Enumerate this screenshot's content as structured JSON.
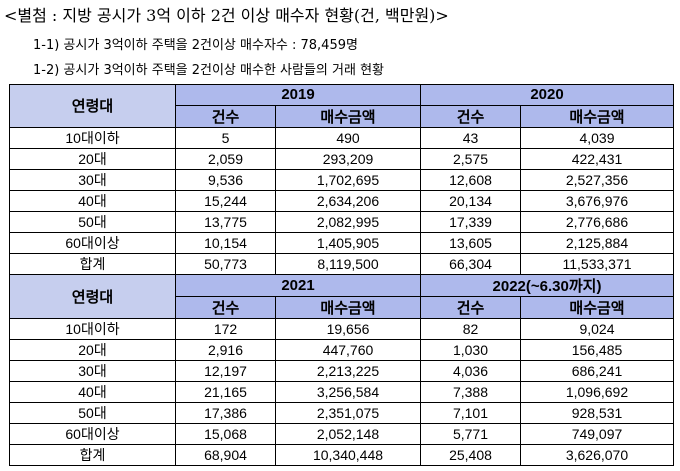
{
  "title": "<별첨 : 지방 공시가 3억 이하 2건 이상 매수자 현황(건, 백만원)>",
  "note1": "1-1) 공시가 3억이하 주택을 2건이상 매수자수 : 78,459명",
  "note2": "1-2) 공시가 3억이하 주택을 2건이상 매수한 사람들의 거래 현황",
  "col_age": "연령대",
  "col_count": "건수",
  "col_amount": "매수금액",
  "block1": {
    "year_a": "2019",
    "year_b": "2020",
    "rows": [
      {
        "age": "10대이하",
        "a_count": "5",
        "a_amount": "490",
        "b_count": "43",
        "b_amount": "4,039"
      },
      {
        "age": "20대",
        "a_count": "2,059",
        "a_amount": "293,209",
        "b_count": "2,575",
        "b_amount": "422,431"
      },
      {
        "age": "30대",
        "a_count": "9,536",
        "a_amount": "1,702,695",
        "b_count": "12,608",
        "b_amount": "2,527,356"
      },
      {
        "age": "40대",
        "a_count": "15,244",
        "a_amount": "2,634,206",
        "b_count": "20,134",
        "b_amount": "3,676,976"
      },
      {
        "age": "50대",
        "a_count": "13,775",
        "a_amount": "2,082,995",
        "b_count": "17,339",
        "b_amount": "2,776,686"
      },
      {
        "age": "60대이상",
        "a_count": "10,154",
        "a_amount": "1,405,905",
        "b_count": "13,605",
        "b_amount": "2,125,884"
      },
      {
        "age": "합계",
        "a_count": "50,773",
        "a_amount": "8,119,500",
        "b_count": "66,304",
        "b_amount": "11,533,371"
      }
    ]
  },
  "block2": {
    "year_a": "2021",
    "year_b": "2022(~6.30까지)",
    "rows": [
      {
        "age": "10대이하",
        "a_count": "172",
        "a_amount": "19,656",
        "b_count": "82",
        "b_amount": "9,024"
      },
      {
        "age": "20대",
        "a_count": "2,916",
        "a_amount": "447,760",
        "b_count": "1,030",
        "b_amount": "156,485"
      },
      {
        "age": "30대",
        "a_count": "12,197",
        "a_amount": "2,213,225",
        "b_count": "4,036",
        "b_amount": "686,241"
      },
      {
        "age": "40대",
        "a_count": "21,165",
        "a_amount": "3,256,584",
        "b_count": "7,388",
        "b_amount": "1,096,692"
      },
      {
        "age": "50대",
        "a_count": "17,386",
        "a_amount": "2,351,075",
        "b_count": "7,101",
        "b_amount": "928,531"
      },
      {
        "age": "60대이상",
        "a_count": "15,068",
        "a_amount": "2,052,148",
        "b_count": "5,771",
        "b_amount": "749,097"
      },
      {
        "age": "합계",
        "a_count": "68,904",
        "a_amount": "10,340,448",
        "b_count": "25,408",
        "b_amount": "3,626,070"
      }
    ]
  }
}
